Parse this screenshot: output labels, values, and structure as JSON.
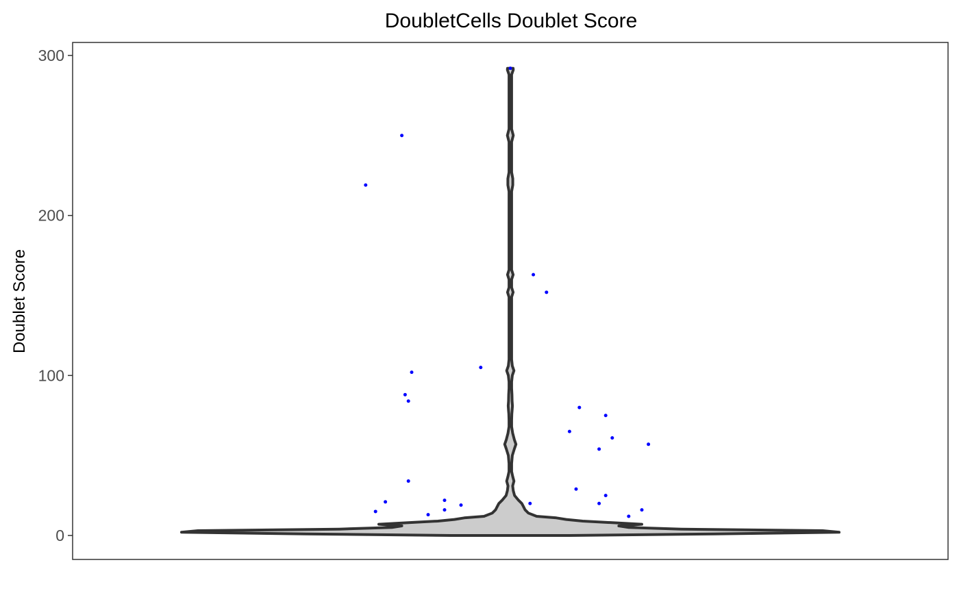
{
  "chart_data": {
    "type": "violin",
    "title": "DoubletCells Doublet Score",
    "xlabel": "",
    "ylabel": "Doublet Score",
    "ylim": [
      -15,
      308
    ],
    "yticks": [
      0,
      100,
      200,
      300
    ],
    "grid": false,
    "legend": "none",
    "colors": {
      "violin_fill": "#cccccc",
      "violin_stroke": "#333333",
      "points": "#0000ff"
    },
    "violin_profile": [
      [
        0,
        0.18
      ],
      [
        1,
        0.62
      ],
      [
        2,
        1.0
      ],
      [
        3,
        0.95
      ],
      [
        4,
        0.52
      ],
      [
        5,
        0.36
      ],
      [
        6,
        0.33
      ],
      [
        7,
        0.4
      ],
      [
        8,
        0.31
      ],
      [
        9,
        0.22
      ],
      [
        10,
        0.17
      ],
      [
        11,
        0.14
      ],
      [
        12,
        0.08
      ],
      [
        14,
        0.055
      ],
      [
        16,
        0.045
      ],
      [
        18,
        0.04
      ],
      [
        20,
        0.035
      ],
      [
        22,
        0.025
      ],
      [
        25,
        0.013
      ],
      [
        28,
        0.009
      ],
      [
        31,
        0.007
      ],
      [
        34,
        0.011
      ],
      [
        37,
        0.007
      ],
      [
        40,
        0.004
      ],
      [
        45,
        0.004
      ],
      [
        50,
        0.006
      ],
      [
        54,
        0.012
      ],
      [
        57,
        0.017
      ],
      [
        60,
        0.012
      ],
      [
        64,
        0.007
      ],
      [
        68,
        0.004
      ],
      [
        72,
        0.004
      ],
      [
        76,
        0.0045
      ],
      [
        78,
        0.0055
      ],
      [
        81,
        0.0065
      ],
      [
        84,
        0.0055
      ],
      [
        88,
        0.005
      ],
      [
        92,
        0.004
      ],
      [
        96,
        0.004
      ],
      [
        100,
        0.006
      ],
      [
        103,
        0.011
      ],
      [
        106,
        0.006
      ],
      [
        110,
        0.004
      ],
      [
        140,
        0.004
      ],
      [
        149,
        0.004
      ],
      [
        152,
        0.0085
      ],
      [
        155,
        0.004
      ],
      [
        160,
        0.004
      ],
      [
        163,
        0.0085
      ],
      [
        166,
        0.004
      ],
      [
        215,
        0.004
      ],
      [
        219,
        0.0075
      ],
      [
        223,
        0.0075
      ],
      [
        227,
        0.004
      ],
      [
        246,
        0.004
      ],
      [
        250,
        0.009
      ],
      [
        254,
        0.004
      ],
      [
        288,
        0.004
      ],
      [
        291,
        0.009
      ],
      [
        292,
        0.0085
      ]
    ],
    "points": [
      [
        -0.44,
        219
      ],
      [
        -0.33,
        250
      ],
      [
        -0.3,
        102
      ],
      [
        -0.32,
        88
      ],
      [
        -0.31,
        84
      ],
      [
        -0.31,
        34
      ],
      [
        -0.38,
        21
      ],
      [
        -0.41,
        15
      ],
      [
        -0.25,
        13
      ],
      [
        -0.2,
        22
      ],
      [
        -0.2,
        16
      ],
      [
        -0.15,
        19
      ],
      [
        -0.09,
        105
      ],
      [
        0.07,
        163
      ],
      [
        0.11,
        152
      ],
      [
        0.06,
        20
      ],
      [
        0.21,
        80
      ],
      [
        0.18,
        65
      ],
      [
        0.29,
        75
      ],
      [
        0.31,
        61
      ],
      [
        0.27,
        54
      ],
      [
        0.42,
        57
      ],
      [
        0.2,
        29
      ],
      [
        0.29,
        25
      ],
      [
        0.27,
        20
      ],
      [
        0.36,
        12
      ],
      [
        0.4,
        16
      ],
      [
        0.0,
        292
      ]
    ]
  }
}
